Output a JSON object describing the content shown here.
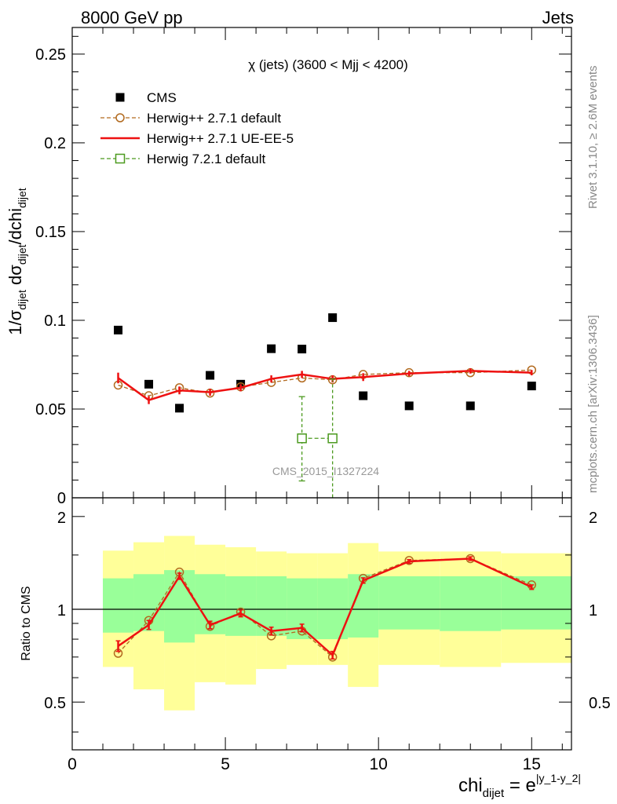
{
  "header": {
    "left": "8000 GeV pp",
    "right": "Jets"
  },
  "side_labels": {
    "rivet": "Rivet 3.1.10, ≥ 2.6M events",
    "mcplots": "mcplots.cern.ch [arXiv:1306.3436]"
  },
  "chart_data": [
    {
      "type": "scatter",
      "panel": "main",
      "title": "χ (jets) (3600 < Mjj < 4200)",
      "ylabel": "1/σ_dijet dσ_dijet/dchi_dijet",
      "ylabel_parts": {
        "a": "1/σ",
        "a_sub": "dijet",
        "b": " dσ",
        "b_sub": "dijet",
        "c": "/dchi",
        "c_sub": "dijet"
      },
      "watermark": "CMS_2015_I1327224",
      "ylim": [
        0,
        0.265
      ],
      "xlim": [
        0,
        16.3
      ],
      "y_ticks": [
        {
          "v": 0,
          "label": "0"
        },
        {
          "v": 0.05,
          "label": "0.05"
        },
        {
          "v": 0.1,
          "label": "0.1"
        },
        {
          "v": 0.15,
          "label": "0.15"
        },
        {
          "v": 0.2,
          "label": "0.2"
        },
        {
          "v": 0.25,
          "label": "0.25"
        }
      ],
      "legend_position": "top-left",
      "series": [
        {
          "name": "CMS",
          "style": "data",
          "color": "#000000",
          "x": [
            1.5,
            2.5,
            3.5,
            4.5,
            5.5,
            6.5,
            7.5,
            8.5,
            9.5,
            11,
            13,
            15
          ],
          "y": [
            0.0945,
            0.064,
            0.0505,
            0.069,
            0.064,
            0.084,
            0.0838,
            0.1015,
            0.0575,
            0.0518,
            0.0518,
            0.063
          ]
        },
        {
          "name": "Herwig++ 2.7.1 default",
          "style": "circle-dashed",
          "color": "#b26a1f",
          "x": [
            1.5,
            2.5,
            3.5,
            4.5,
            5.5,
            6.5,
            7.5,
            8.5,
            9.5,
            11,
            13,
            15
          ],
          "y": [
            0.0635,
            0.0575,
            0.062,
            0.059,
            0.0625,
            0.065,
            0.0675,
            0.0665,
            0.0695,
            0.0705,
            0.0705,
            0.072
          ]
        },
        {
          "name": "Herwig++ 2.7.1 UE-EE-5",
          "style": "solid",
          "color": "#ee1111",
          "x": [
            1.5,
            2.5,
            3.5,
            4.5,
            5.5,
            6.5,
            7.5,
            8.5,
            9.5,
            11,
            13,
            15
          ],
          "y": [
            0.0675,
            0.055,
            0.0605,
            0.0595,
            0.062,
            0.067,
            0.0695,
            0.067,
            0.068,
            0.07,
            0.0715,
            0.0705
          ],
          "yerr": [
            0.003,
            0.0022,
            0.0022,
            0.002,
            0.002,
            0.002,
            0.002,
            0.002,
            0.0022,
            0.0015,
            0.0015,
            0.0015
          ]
        },
        {
          "name": "Herwig 7.2.1 default",
          "style": "square-dashed",
          "color": "#4c9a1f",
          "x": [
            7.5,
            8.5
          ],
          "y": [
            0.0335,
            0.0335
          ],
          "ylow": [
            0.0095,
            0.0
          ],
          "yhigh": [
            0.057,
            0.067
          ]
        }
      ]
    },
    {
      "type": "line",
      "panel": "ratio",
      "ylabel": "Ratio to CMS",
      "xlabel": "chi_dijet = e^|y_1-y_2|",
      "xlabel_parts": {
        "main": "chi",
        "sub": "dijet",
        "eq": " = e",
        "sup": "|y_1-y_2|"
      },
      "ylim": [
        0.35,
        2.3
      ],
      "xlim": [
        0,
        16.3
      ],
      "reference_line": 1,
      "x_ticks": [
        {
          "v": 0,
          "label": "0"
        },
        {
          "v": 5,
          "label": "5"
        },
        {
          "v": 10,
          "label": "10"
        },
        {
          "v": 15,
          "label": "15"
        }
      ],
      "y_ticks": [
        {
          "v": 0.5,
          "label": "0.5"
        },
        {
          "v": 1,
          "label": "1"
        },
        {
          "v": 2,
          "label": "2"
        }
      ],
      "bands": {
        "bins": [
          [
            1,
            2
          ],
          [
            2,
            3
          ],
          [
            3,
            4
          ],
          [
            4,
            5
          ],
          [
            5,
            6
          ],
          [
            6,
            7
          ],
          [
            7,
            8
          ],
          [
            8,
            9
          ],
          [
            9,
            10
          ],
          [
            10,
            12
          ],
          [
            12,
            14
          ],
          [
            14,
            16.3
          ]
        ],
        "stat_low": [
          0.84,
          0.85,
          0.78,
          0.83,
          0.82,
          0.82,
          0.8,
          0.8,
          0.81,
          0.86,
          0.85,
          0.86
        ],
        "stat_high": [
          1.26,
          1.3,
          1.34,
          1.3,
          1.28,
          1.28,
          1.26,
          1.26,
          1.3,
          1.28,
          1.28,
          1.28
        ],
        "total_low": [
          0.65,
          0.55,
          0.47,
          0.58,
          0.57,
          0.64,
          0.66,
          0.66,
          0.56,
          0.66,
          0.65,
          0.67
        ],
        "total_high": [
          1.55,
          1.65,
          1.73,
          1.62,
          1.59,
          1.54,
          1.52,
          1.52,
          1.64,
          1.54,
          1.54,
          1.52
        ],
        "stat_color": "#99ff99",
        "total_color": "#ffff99"
      },
      "series": [
        {
          "name": "Herwig++ 2.7.1 default",
          "style": "circle-dashed",
          "color": "#b26a1f",
          "x": [
            1.5,
            2.5,
            3.5,
            4.5,
            5.5,
            6.5,
            7.5,
            8.5,
            9.5,
            11,
            13,
            15
          ],
          "y": [
            0.72,
            0.92,
            1.32,
            0.88,
            0.98,
            0.82,
            0.85,
            0.7,
            1.26,
            1.44,
            1.46,
            1.2
          ]
        },
        {
          "name": "Herwig++ 2.7.1 UE-EE-5",
          "style": "solid",
          "color": "#ee1111",
          "x": [
            1.5,
            2.5,
            3.5,
            4.5,
            5.5,
            6.5,
            7.5,
            8.5,
            9.5,
            11,
            13,
            15
          ],
          "y": [
            0.76,
            0.89,
            1.28,
            0.89,
            0.97,
            0.85,
            0.87,
            0.71,
            1.24,
            1.43,
            1.46,
            1.18
          ],
          "yerr": [
            0.03,
            0.03,
            0.03,
            0.025,
            0.025,
            0.025,
            0.025,
            0.02,
            0.025,
            0.02,
            0.02,
            0.02
          ]
        }
      ]
    }
  ]
}
